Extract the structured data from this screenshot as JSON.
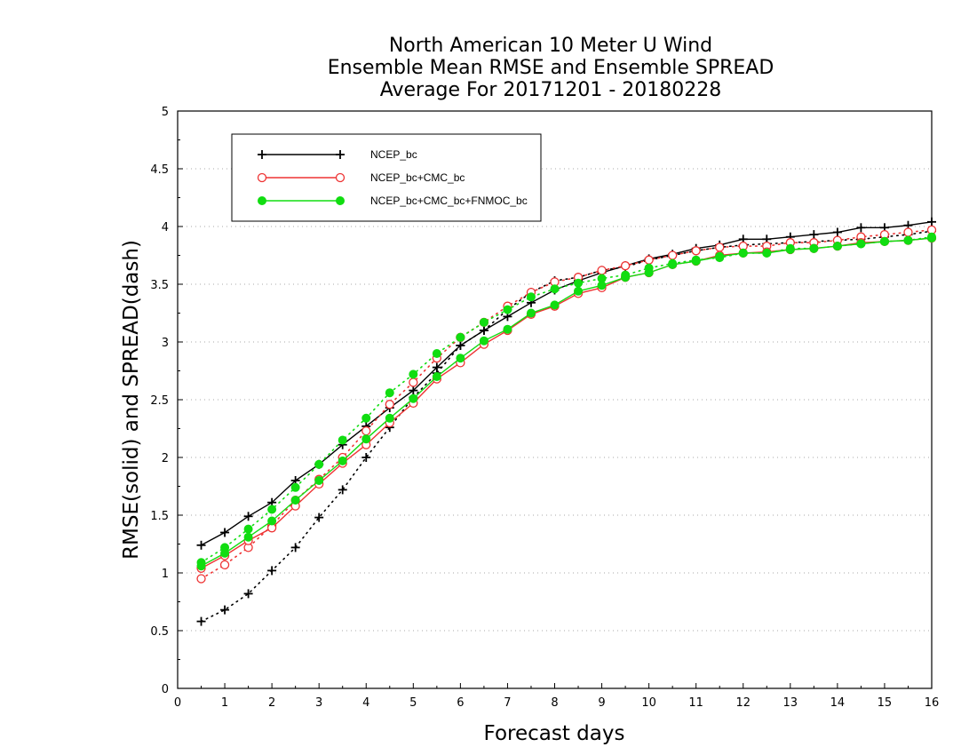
{
  "chart_data": {
    "type": "line",
    "title_lines": [
      "North American 10 Meter U Wind",
      "Ensemble Mean RMSE and Ensemble SPREAD",
      "Average For 20171201 - 20180228"
    ],
    "xlabel": "Forecast days",
    "ylabel": "RMSE(solid) and SPREAD(dash)",
    "xlim": [
      0,
      16
    ],
    "ylim": [
      0,
      5
    ],
    "x_ticks": [
      "0",
      "1",
      "2",
      "3",
      "4",
      "5",
      "6",
      "7",
      "8",
      "9",
      "10",
      "11",
      "12",
      "13",
      "14",
      "15",
      "16"
    ],
    "y_ticks": [
      "0",
      "0.5",
      "1",
      "1.5",
      "2",
      "2.5",
      "3",
      "3.5",
      "4",
      "4.5",
      "5"
    ],
    "grid": true,
    "legend_position": "top-left",
    "x": [
      0.5,
      1,
      1.5,
      2,
      2.5,
      3,
      3.5,
      4,
      4.5,
      5,
      5.5,
      6,
      6.5,
      7,
      7.5,
      8,
      8.5,
      9,
      9.5,
      10,
      10.5,
      11,
      11.5,
      12,
      12.5,
      13,
      13.5,
      14,
      14.5,
      15,
      15.5,
      16
    ],
    "series": [
      {
        "name": "NCEP_bc",
        "color": "#000000",
        "marker": "plus",
        "rmse": [
          1.24,
          1.35,
          1.49,
          1.61,
          1.8,
          1.94,
          2.11,
          2.27,
          2.43,
          2.58,
          2.78,
          2.97,
          3.1,
          3.22,
          3.34,
          3.45,
          3.53,
          3.6,
          3.66,
          3.72,
          3.76,
          3.81,
          3.84,
          3.89,
          3.89,
          3.91,
          3.93,
          3.95,
          3.99,
          3.99,
          4.01,
          4.04
        ],
        "spread": [
          0.58,
          0.68,
          0.82,
          1.02,
          1.22,
          1.48,
          1.72,
          2.0,
          2.26,
          2.52,
          2.73,
          2.97,
          3.1,
          3.28,
          3.43,
          3.53,
          3.56,
          3.62,
          3.65,
          3.71,
          3.75,
          3.79,
          3.82,
          3.84,
          3.85,
          3.86,
          3.87,
          3.88,
          3.89,
          3.91,
          3.93,
          3.96
        ]
      },
      {
        "name": "NCEP_bc+CMC_bc",
        "color": "#ee3333",
        "marker": "circle",
        "rmse": [
          1.04,
          1.15,
          1.28,
          1.39,
          1.58,
          1.77,
          1.95,
          2.11,
          2.3,
          2.47,
          2.68,
          2.82,
          2.98,
          3.1,
          3.24,
          3.31,
          3.42,
          3.47,
          3.56,
          3.6,
          3.67,
          3.7,
          3.75,
          3.77,
          3.78,
          3.8,
          3.81,
          3.83,
          3.86,
          3.87,
          3.88,
          3.9
        ],
        "spread": [
          0.95,
          1.07,
          1.22,
          1.41,
          1.63,
          1.81,
          2.0,
          2.23,
          2.46,
          2.65,
          2.86,
          3.04,
          3.17,
          3.31,
          3.43,
          3.52,
          3.56,
          3.62,
          3.66,
          3.71,
          3.75,
          3.79,
          3.82,
          3.83,
          3.83,
          3.86,
          3.86,
          3.88,
          3.91,
          3.93,
          3.95,
          3.97
        ]
      },
      {
        "name": "NCEP_bc+CMC_bc+FNMOC_bc",
        "color": "#11dd11",
        "marker": "filled-circle",
        "rmse": [
          1.06,
          1.17,
          1.31,
          1.45,
          1.63,
          1.8,
          1.97,
          2.16,
          2.34,
          2.51,
          2.7,
          2.86,
          3.01,
          3.11,
          3.25,
          3.32,
          3.44,
          3.49,
          3.56,
          3.6,
          3.67,
          3.7,
          3.74,
          3.77,
          3.77,
          3.8,
          3.81,
          3.83,
          3.85,
          3.87,
          3.88,
          3.9
        ],
        "spread": [
          1.09,
          1.22,
          1.38,
          1.55,
          1.74,
          1.94,
          2.15,
          2.34,
          2.56,
          2.72,
          2.9,
          3.04,
          3.17,
          3.28,
          3.39,
          3.46,
          3.51,
          3.55,
          3.58,
          3.64,
          3.68,
          3.71,
          3.73,
          3.77,
          3.77,
          3.81,
          3.81,
          3.83,
          3.85,
          3.87,
          3.88,
          3.91
        ]
      }
    ]
  }
}
